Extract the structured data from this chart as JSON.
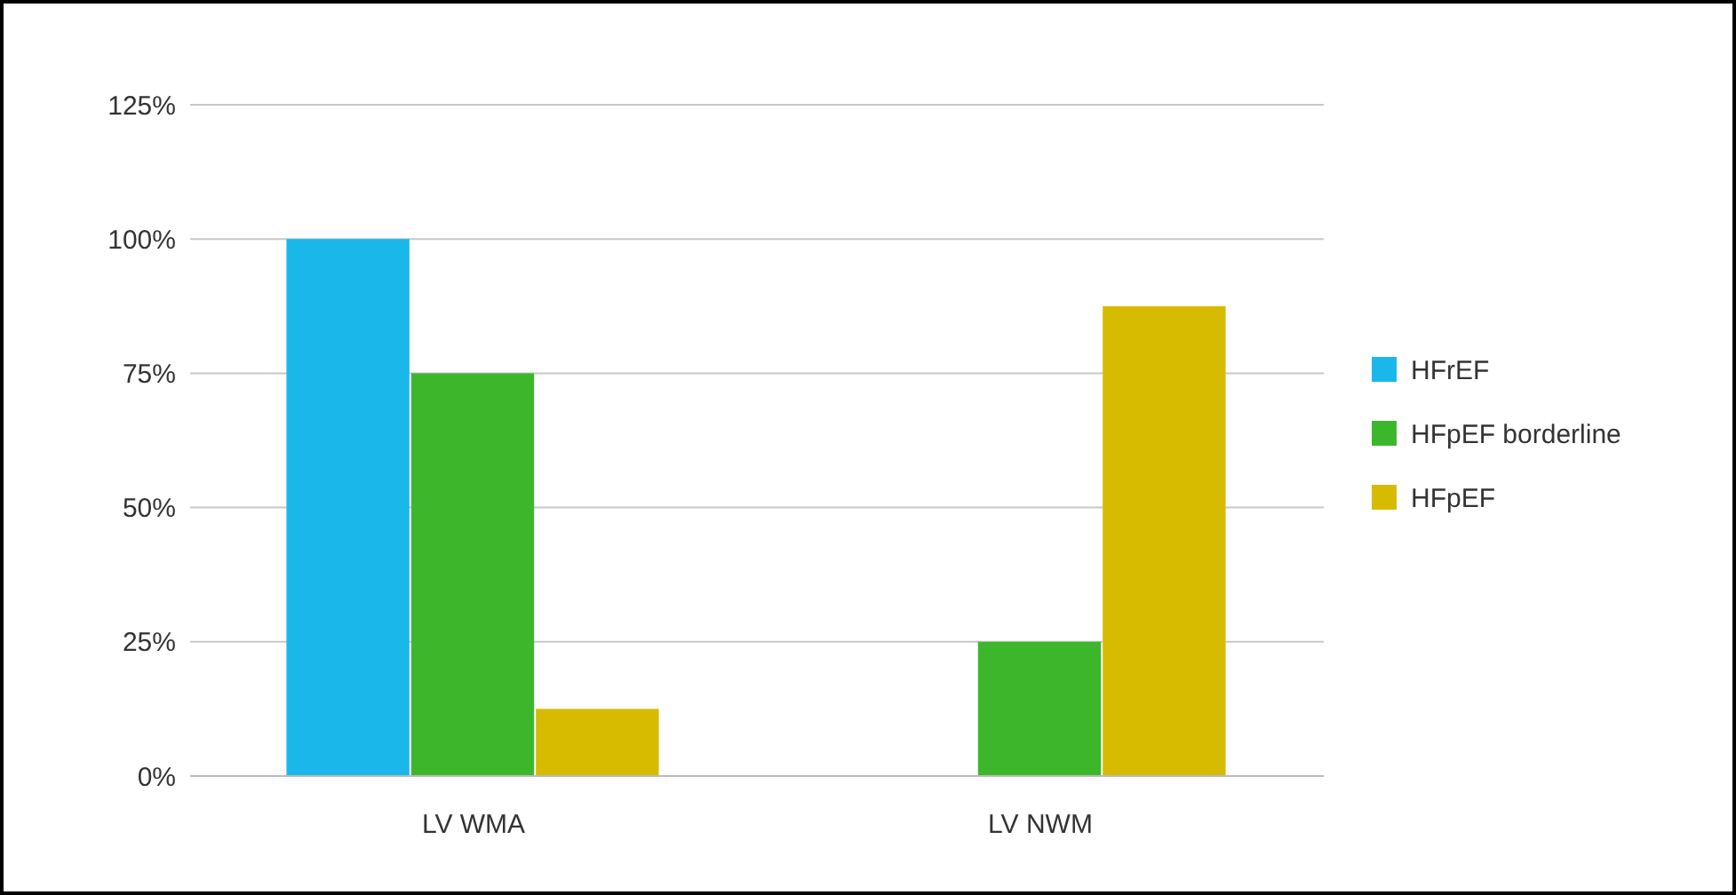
{
  "chart_data": {
    "type": "bar",
    "categories": [
      "LV WMA",
      "LV NWM"
    ],
    "series": [
      {
        "name": "HFrEF",
        "color": "#1ab7ea",
        "values": [
          100,
          0
        ]
      },
      {
        "name": "HFpEF borderline",
        "color": "#3cb72c",
        "values": [
          75,
          25
        ]
      },
      {
        "name": "HFpEF",
        "color": "#d6bb00",
        "values": [
          12.5,
          87.5
        ]
      }
    ],
    "ylim": [
      0,
      125
    ],
    "yticks": [
      {
        "value": 0,
        "label": "0%"
      },
      {
        "value": 25,
        "label": "25%"
      },
      {
        "value": 50,
        "label": "50%"
      },
      {
        "value": 75,
        "label": "75%"
      },
      {
        "value": 100,
        "label": "100%"
      },
      {
        "value": 125,
        "label": "125%"
      }
    ],
    "grid": "y",
    "legend": "right"
  }
}
